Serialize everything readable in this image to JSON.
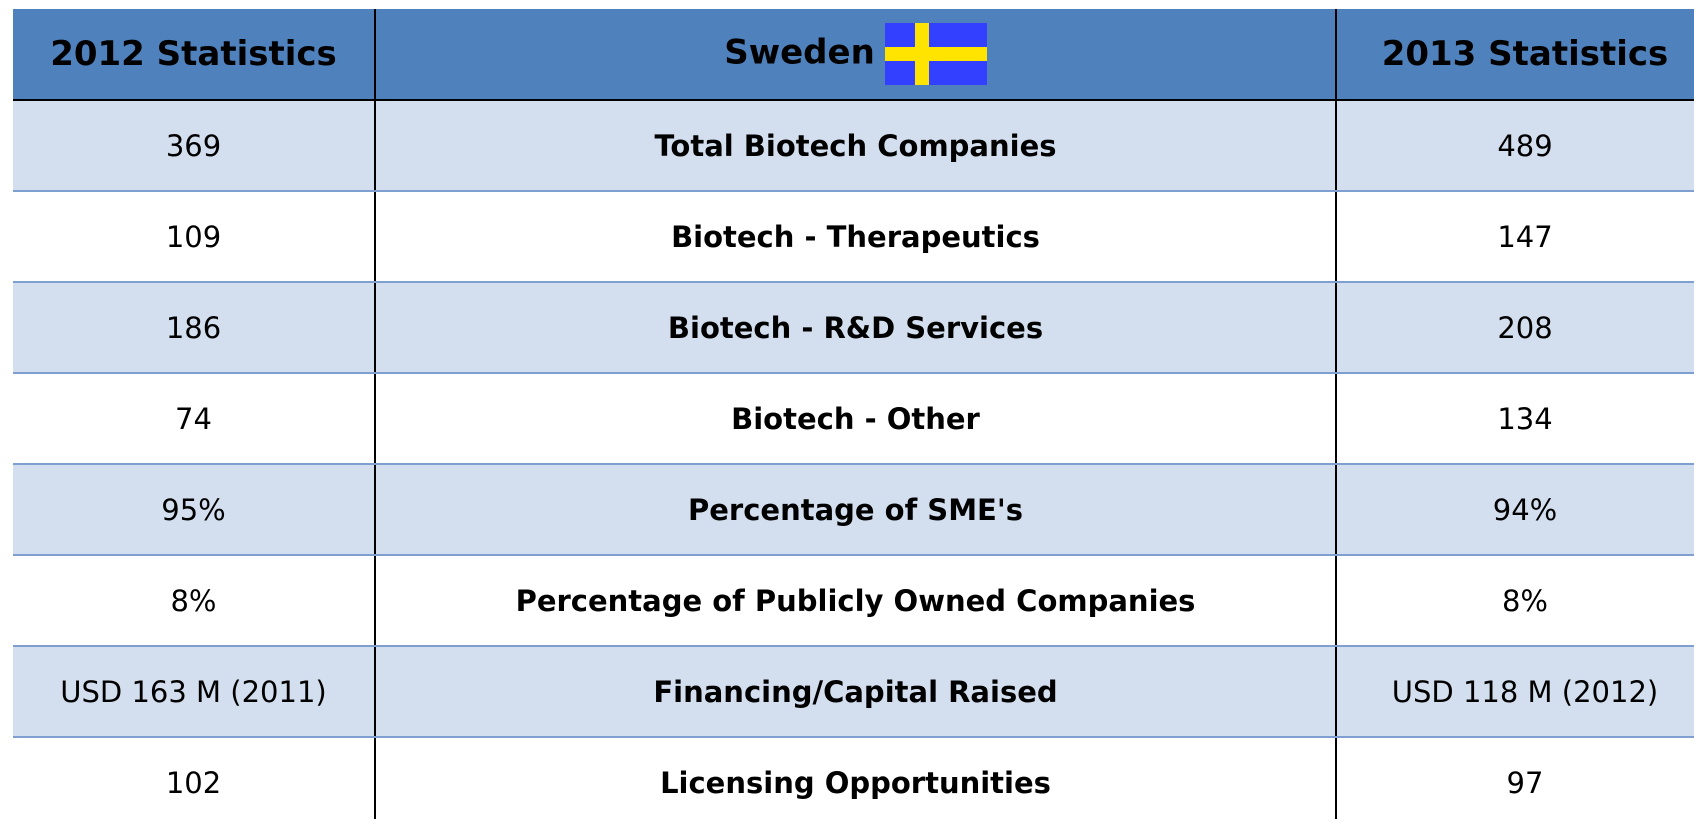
{
  "table": {
    "header": [
      "2012 Statistics",
      "Sweden",
      "2013 Statistics"
    ],
    "rows": [
      [
        "369",
        "Total Biotech Companies",
        "489"
      ],
      [
        "109",
        "Biotech - Therapeutics",
        "147"
      ],
      [
        "186",
        "Biotech - R&D Services",
        "208"
      ],
      [
        "74",
        "Biotech - Other",
        "134"
      ],
      [
        "95%",
        "Percentage of SME's",
        "94%"
      ],
      [
        "8%",
        "Percentage of Publicly Owned Companies",
        "8%"
      ],
      [
        "USD 163 M (2011)",
        "Financing/Capital Raised",
        "USD 118 M (2012)"
      ],
      [
        "102",
        "Licensing Opportunities",
        "97"
      ]
    ]
  }
}
